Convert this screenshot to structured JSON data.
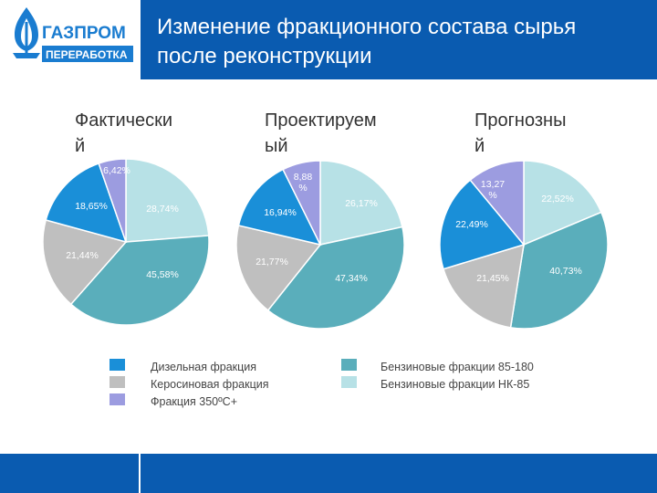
{
  "header": {
    "logo_text_main": "ГАЗПРОМ",
    "logo_text_sub": "ПЕРЕРАБОТКА",
    "title_line1": "Изменение фракционного состава сырья",
    "title_line2": "после реконструкции"
  },
  "colors": {
    "brand_blue": "#0a5bb0",
    "diesel": "#5aaebb",
    "kerosene": "#bfbfbf",
    "fraction350": "#9c9ce0",
    "gasoline_85_180": "#1a8fd8",
    "gasoline_nk_85": "#b7e1e6"
  },
  "legend": [
    {
      "label": "Дизельная фракция",
      "color_key": "gasoline_85_180"
    },
    {
      "label": "Керосиновая фракция",
      "color_key": "kerosene"
    },
    {
      "label": "Фракция 350ºС+",
      "color_key": "fraction350"
    },
    {
      "label": "Бензиновые фракции 85-180",
      "color_key": "diesel"
    },
    {
      "label": "Бензиновые фракции НК-85",
      "color_key": "gasoline_nk_85"
    }
  ],
  "chart_data": [
    {
      "type": "pie",
      "title": "Фактически\nй",
      "slices": [
        {
          "name": "Бензиновые фракции НК-85",
          "value": 28.74,
          "label": "28,74%",
          "color_key": "gasoline_nk_85"
        },
        {
          "name": "Бензиновые фракции 85-180",
          "value": 45.58,
          "label": "45,58%",
          "color_key": "diesel"
        },
        {
          "name": "Керосиновая фракция",
          "value": 21.44,
          "label": "21,44%",
          "color_key": "kerosene"
        },
        {
          "name": "Дизельная фракция",
          "value": 18.65,
          "label": "18,65%",
          "color_key": "gasoline_85_180"
        },
        {
          "name": "Фракция 350ºС+",
          "value": 6.42,
          "label": "6,42%",
          "color_key": "fraction350"
        }
      ]
    },
    {
      "type": "pie",
      "title": "Проектируем\nый",
      "slices": [
        {
          "name": "Бензиновые фракции НК-85",
          "value": 26.17,
          "label": "26,17%",
          "color_key": "gasoline_nk_85"
        },
        {
          "name": "Бензиновые фракции 85-180",
          "value": 47.34,
          "label": "47,34%",
          "color_key": "diesel"
        },
        {
          "name": "Керосиновая фракция",
          "value": 21.77,
          "label": "21,77%",
          "color_key": "kerosene"
        },
        {
          "name": "Дизельная фракция",
          "value": 16.94,
          "label": "16,94%",
          "color_key": "gasoline_85_180"
        },
        {
          "name": "Фракция 350ºС+",
          "value": 8.88,
          "label": "8,88\n%",
          "color_key": "fraction350"
        }
      ]
    },
    {
      "type": "pie",
      "title": "Прогнозны\nй",
      "slices": [
        {
          "name": "Бензиновые фракции НК-85",
          "value": 22.52,
          "label": "22,52%",
          "color_key": "gasoline_nk_85"
        },
        {
          "name": "Бензиновые фракции 85-180",
          "value": 40.73,
          "label": "40,73%",
          "color_key": "diesel"
        },
        {
          "name": "Керосиновая фракция",
          "value": 21.45,
          "label": "21,45%",
          "color_key": "kerosene"
        },
        {
          "name": "Дизельная фракция",
          "value": 22.49,
          "label": "22,49%",
          "color_key": "gasoline_85_180"
        },
        {
          "name": "Фракция 350ºС+",
          "value": 13.27,
          "label": "13,27\n%",
          "color_key": "fraction350"
        }
      ]
    }
  ]
}
